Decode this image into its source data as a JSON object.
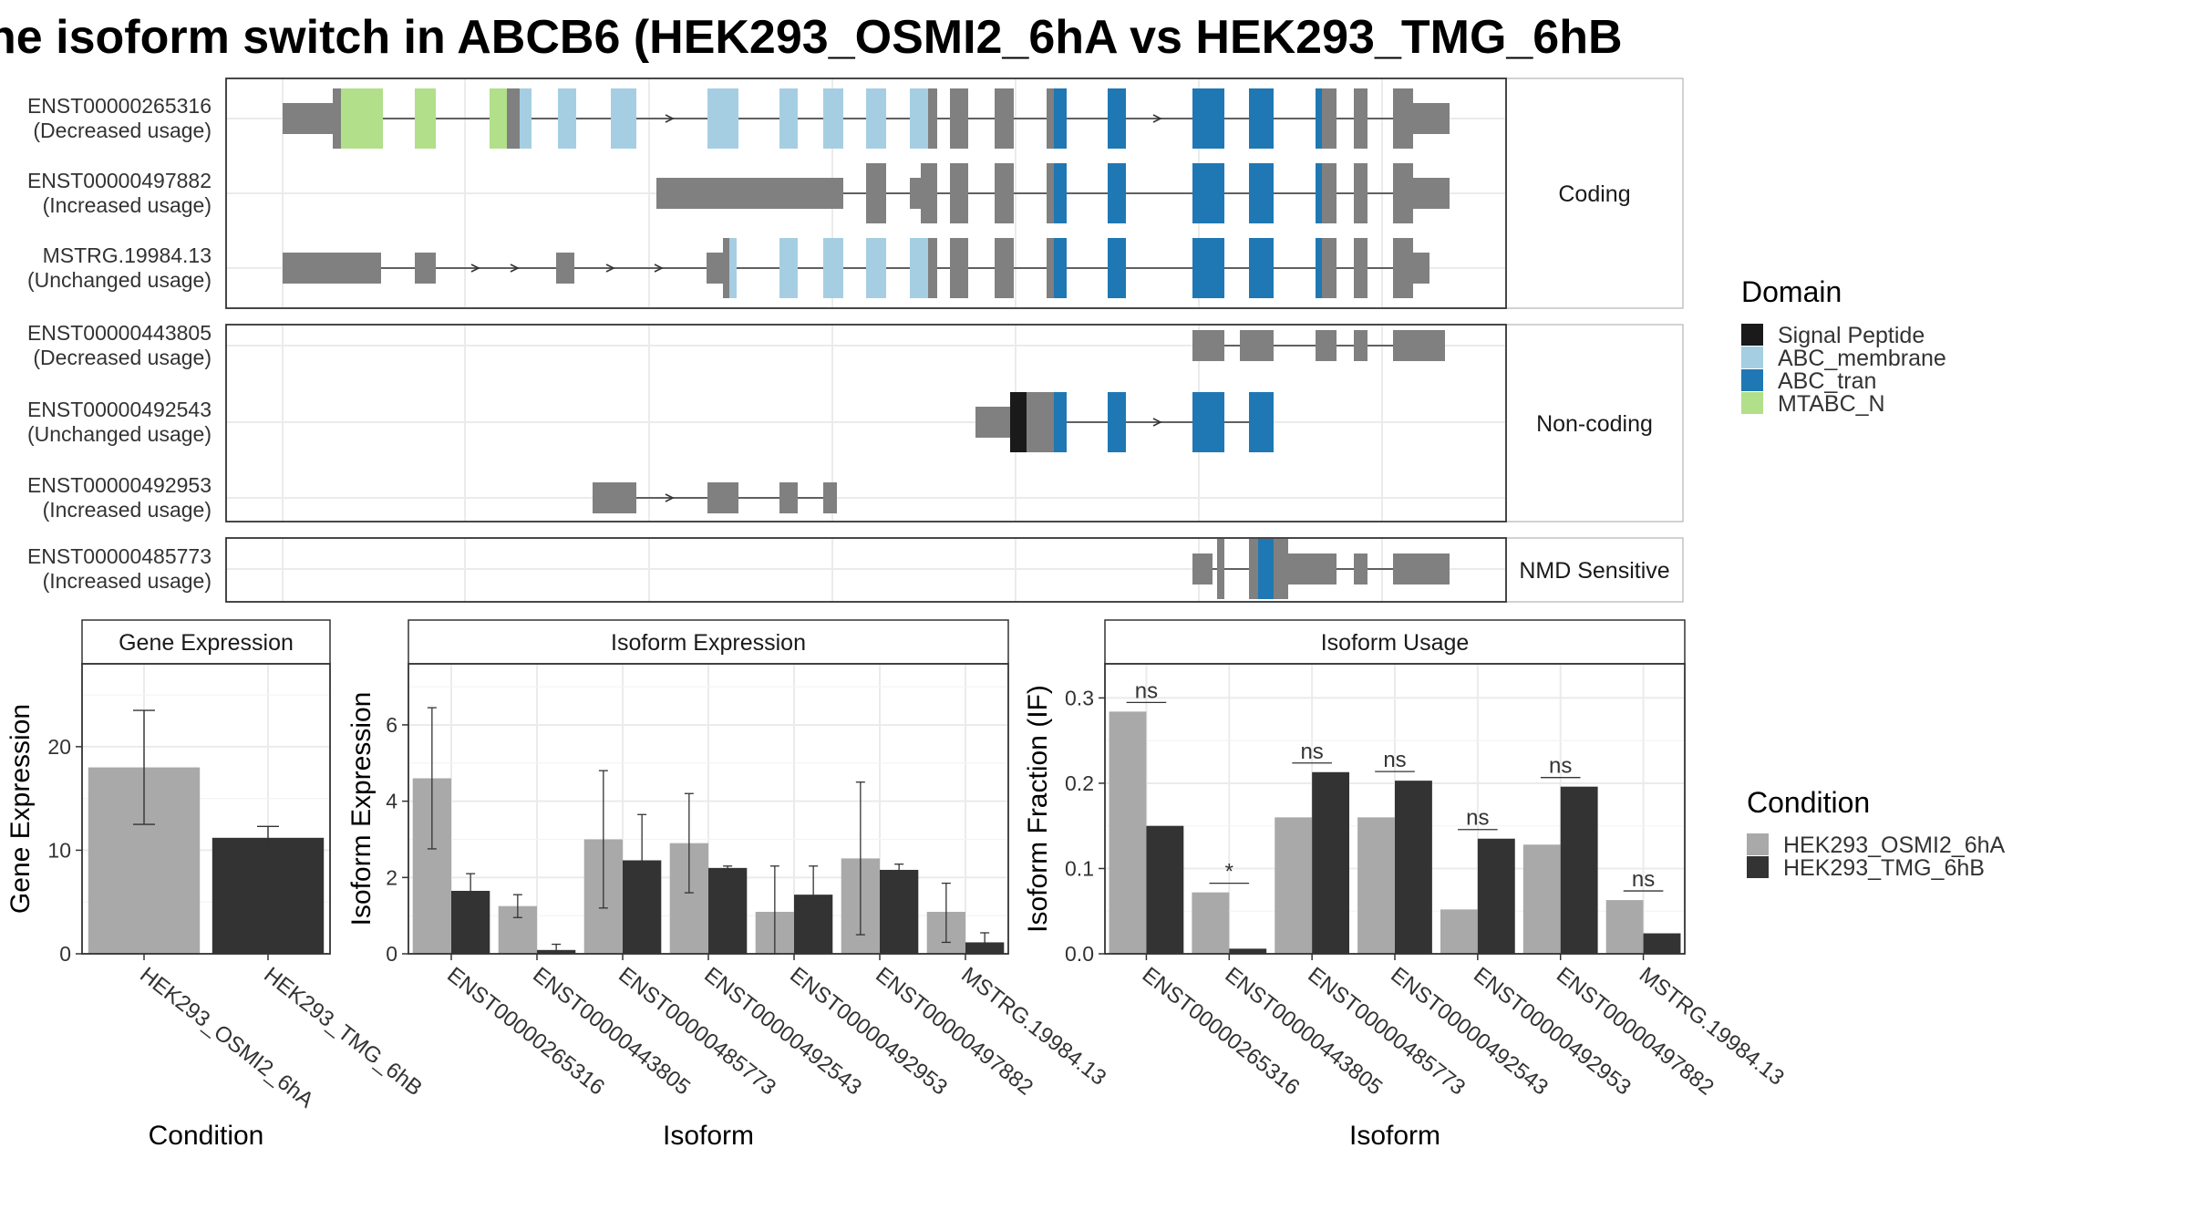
{
  "title": "he isoform switch in ABCB6 (HEK293_OSMI2_6hA vs HEK293_TMG_6hB",
  "colors": {
    "exon_grey": "#808080",
    "signal_peptide": "#1a1a1a",
    "abc_membrane": "#a6cee3",
    "abc_tran": "#1f78b4",
    "mtabc_n": "#b2df8a",
    "cond_a": "#a9a9a9",
    "cond_b": "#333333"
  },
  "structure": {
    "panels": [
      {
        "label": "Coding",
        "tracks": [
          {
            "id": "ENST00000265316",
            "usage": "(Decreased usage)"
          },
          {
            "id": "ENST00000497882",
            "usage": "(Increased usage)"
          },
          {
            "id": "MSTRG.19984.13",
            "usage": "(Unchanged usage)"
          }
        ]
      },
      {
        "label": "Non-coding",
        "tracks": [
          {
            "id": "ENST00000443805",
            "usage": "(Decreased usage)"
          },
          {
            "id": "ENST00000492543",
            "usage": "(Unchanged usage)"
          },
          {
            "id": "ENST00000492953",
            "usage": "(Increased usage)"
          }
        ]
      },
      {
        "label": "NMD Sensitive",
        "tracks": [
          {
            "id": "ENST00000485773",
            "usage": "(Increased usage)"
          }
        ]
      }
    ]
  },
  "legend_domain": {
    "title": "Domain",
    "items": [
      {
        "label": "Signal Peptide",
        "color": "#1a1a1a"
      },
      {
        "label": "ABC_membrane",
        "color": "#a6cee3"
      },
      {
        "label": "ABC_tran",
        "color": "#1f78b4"
      },
      {
        "label": "MTABC_N",
        "color": "#b2df8a"
      }
    ]
  },
  "legend_condition": {
    "title": "Condition",
    "items": [
      {
        "label": "HEK293_OSMI2_6hA",
        "color": "#a9a9a9"
      },
      {
        "label": "HEK293_TMG_6hB",
        "color": "#333333"
      }
    ]
  },
  "chart_data": [
    {
      "type": "bar",
      "title": "Gene Expression",
      "xlabel": "Condition",
      "ylabel": "Gene Expression",
      "ylim": [
        0,
        28
      ],
      "yticks": [
        0,
        10,
        20
      ],
      "categories": [
        "HEK293_OSMI2_6hA",
        "HEK293_TMG_6hB"
      ],
      "values": [
        18.0,
        11.2
      ],
      "errors": [
        [
          12.5,
          23.5
        ],
        [
          10.2,
          12.3
        ]
      ]
    },
    {
      "type": "bar",
      "title": "Isoform Expression",
      "xlabel": "Isoform",
      "ylabel": "Isoform Expression",
      "ylim": [
        0,
        7.6
      ],
      "yticks": [
        0,
        2,
        4,
        6
      ],
      "categories": [
        "ENST00000265316",
        "ENST00000443805",
        "ENST00000485773",
        "ENST00000492543",
        "ENST00000492953",
        "ENST00000497882",
        "MSTRG.19984.13"
      ],
      "series": [
        {
          "name": "HEK293_OSMI2_6hA",
          "values": [
            4.6,
            1.25,
            3.0,
            2.9,
            1.1,
            2.5,
            1.1
          ],
          "errors": [
            [
              2.75,
              6.45
            ],
            [
              0.95,
              1.55
            ],
            [
              1.2,
              4.8
            ],
            [
              1.6,
              4.2
            ],
            [
              0.0,
              2.3
            ],
            [
              0.5,
              4.5
            ],
            [
              0.3,
              1.85
            ]
          ]
        },
        {
          "name": "HEK293_TMG_6hB",
          "values": [
            1.65,
            0.1,
            2.45,
            2.25,
            1.55,
            2.2,
            0.3
          ],
          "errors": [
            [
              1.2,
              2.1
            ],
            [
              0.0,
              0.25
            ],
            [
              1.25,
              3.65
            ],
            [
              2.2,
              2.3
            ],
            [
              0.8,
              2.3
            ],
            [
              2.05,
              2.35
            ],
            [
              0.05,
              0.55
            ]
          ]
        }
      ]
    },
    {
      "type": "bar",
      "title": "Isoform Usage",
      "xlabel": "Isoform",
      "ylabel": "Isoform Fraction (IF)",
      "ylim": [
        0,
        0.34
      ],
      "yticks": [
        0.0,
        0.1,
        0.2,
        0.3
      ],
      "categories": [
        "ENST00000265316",
        "ENST00000443805",
        "ENST00000485773",
        "ENST00000492543",
        "ENST00000492953",
        "ENST00000497882",
        "MSTRG.19984.13"
      ],
      "series": [
        {
          "name": "HEK293_OSMI2_6hA",
          "values": [
            0.284,
            0.072,
            0.16,
            0.16,
            0.052,
            0.128,
            0.063
          ]
        },
        {
          "name": "HEK293_TMG_6hB",
          "values": [
            0.15,
            0.006,
            0.213,
            0.203,
            0.135,
            0.196,
            0.024
          ]
        }
      ],
      "significance": [
        "ns",
        "*",
        "ns",
        "ns",
        "ns",
        "ns",
        "ns"
      ]
    }
  ]
}
